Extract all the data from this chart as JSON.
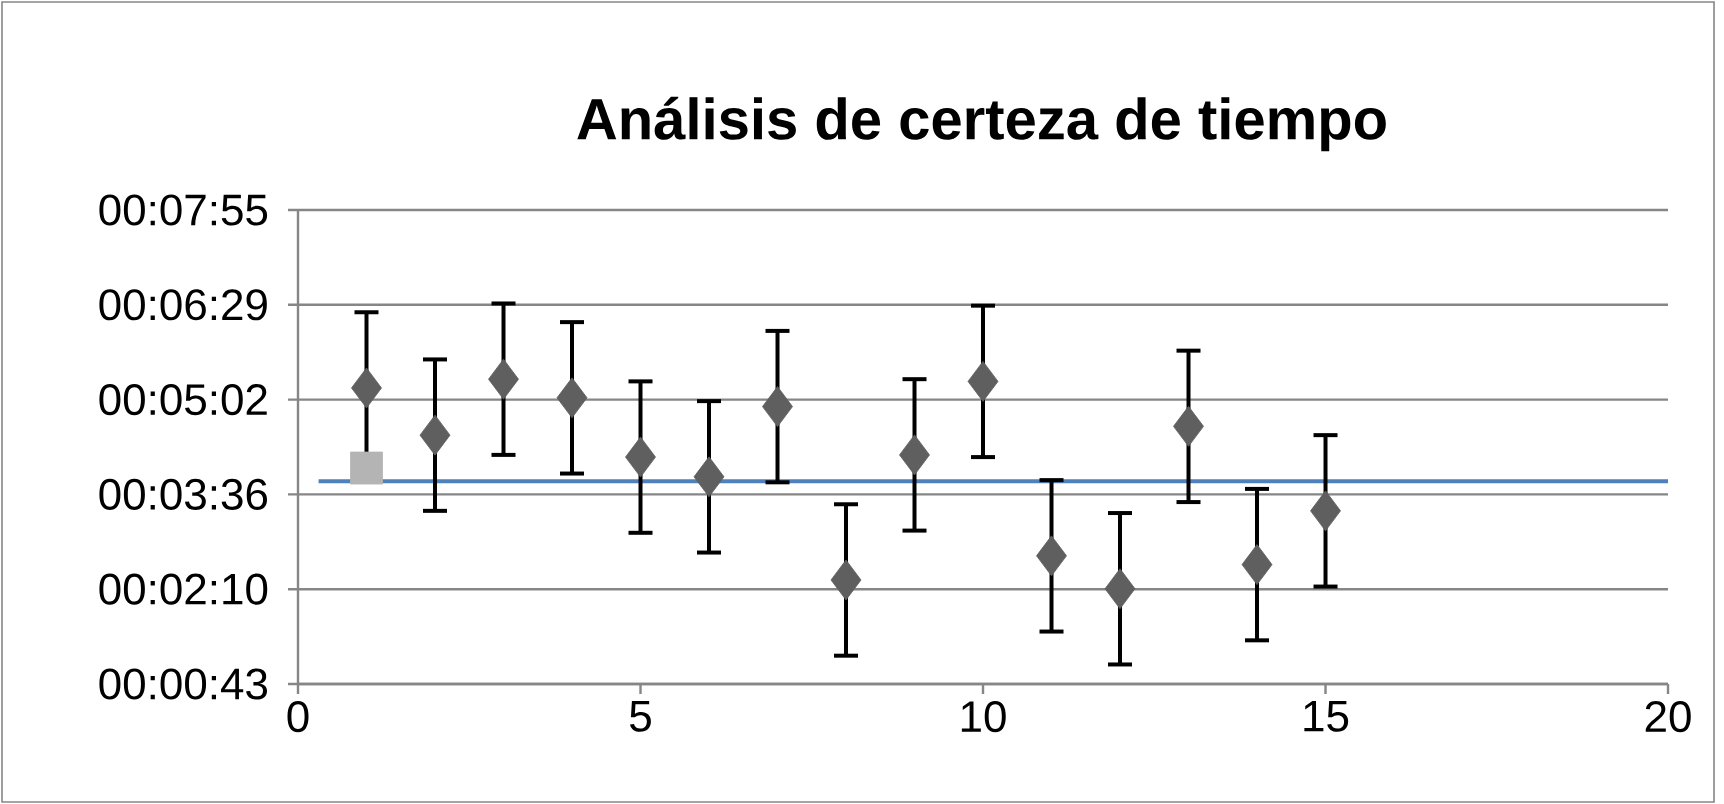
{
  "chart_data": {
    "type": "scatter",
    "title": "Análisis de certeza de tiempo",
    "x": [
      1,
      2,
      3,
      4,
      5,
      6,
      7,
      8,
      9,
      10,
      11,
      12,
      13,
      14,
      15
    ],
    "series": [
      {
        "type": "line",
        "color": "#4f81bd",
        "x": [
          0.3,
          20
        ],
        "values": [
          228,
          228
        ],
        "marker": "none"
      },
      {
        "color": "#5f5f5f",
        "marker": "diamond",
        "values": [
          313,
          270,
          321,
          304,
          250,
          232,
          296,
          138,
          252,
          319,
          160,
          130,
          278,
          152,
          201
        ],
        "errors": [
          69,
          69,
          69,
          69,
          69,
          69,
          69,
          69,
          69,
          69,
          69,
          69,
          69,
          69,
          69
        ]
      },
      {
        "color": "#b4b4b4",
        "marker": "square",
        "x": [
          1
        ],
        "values": [
          240
        ]
      }
    ],
    "xlim": [
      0,
      20
    ],
    "xticks": [
      0,
      5,
      10,
      15,
      20
    ],
    "ylim": [
      43.2,
      475.2
    ],
    "yticks": [
      {
        "value": 43.2,
        "label": "00:00:43"
      },
      {
        "value": 129.6,
        "label": "00:02:10"
      },
      {
        "value": 216,
        "label": "00:03:36"
      },
      {
        "value": 302.4,
        "label": "00:05:02"
      },
      {
        "value": 388.8,
        "label": "00:06:29"
      },
      {
        "value": 475.2,
        "label": "00:07:55"
      }
    ],
    "grid": "y"
  }
}
